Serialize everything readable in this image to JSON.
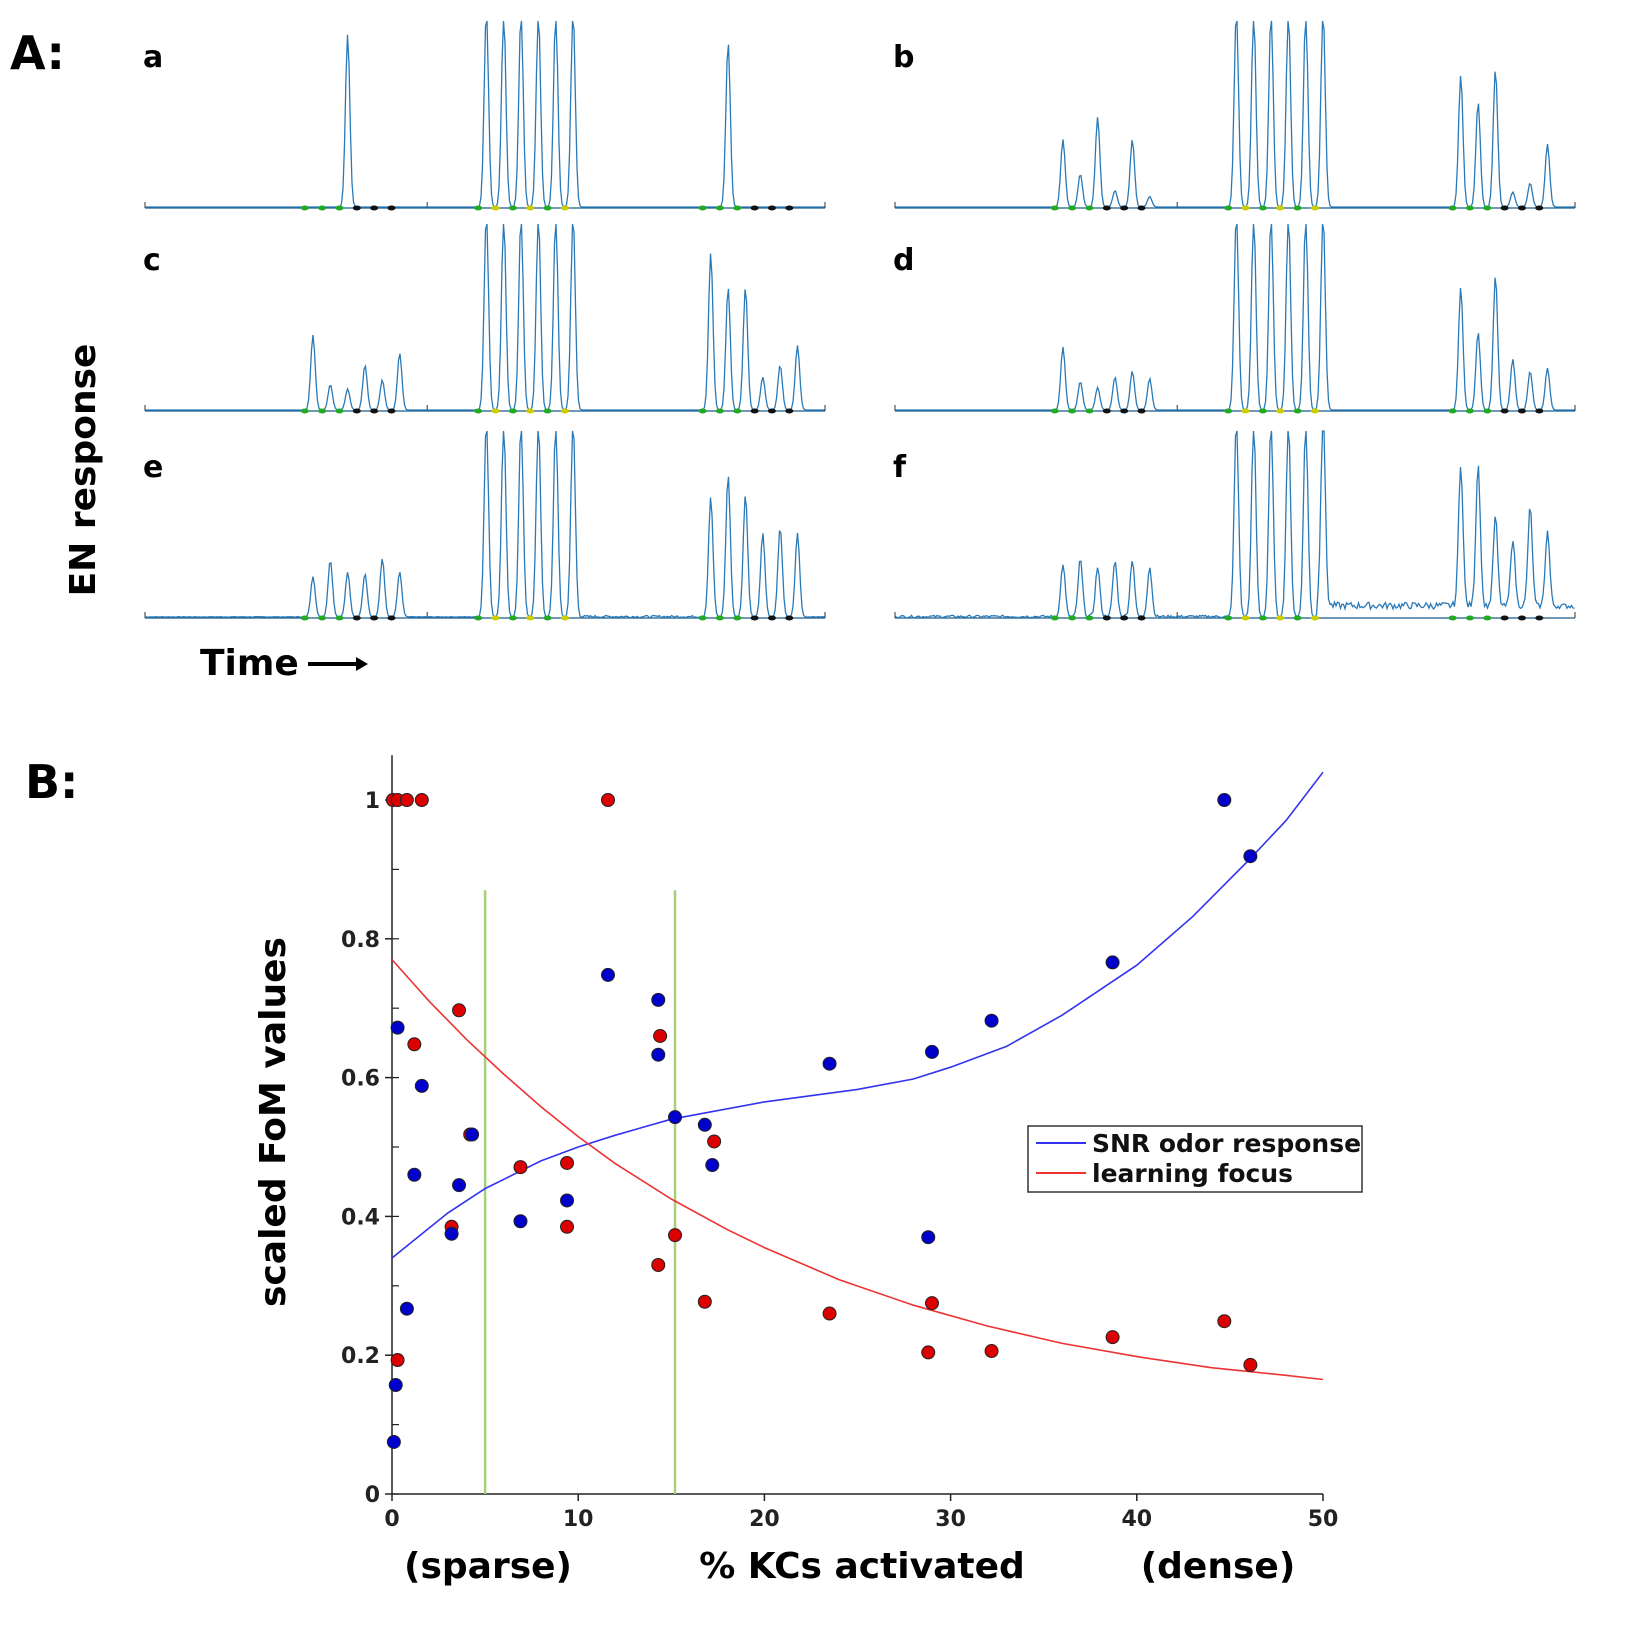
{
  "panel_a": {
    "label": "A:",
    "ylabel": "EN response",
    "xlabel": "Time",
    "subplots": [
      {
        "label": "a",
        "noise": 0,
        "groups": [
          {
            "peaks": [
              0,
              0,
              1.15,
              0,
              0,
              0
            ],
            "dots": [
              "g",
              "g",
              "g",
              "k",
              "k",
              "k"
            ]
          },
          {
            "peaks": [
              1.3,
              1.3,
              1.3,
              1.3,
              1.3,
              1.3
            ],
            "dots": [
              "g",
              "y",
              "g",
              "y",
              "g",
              "y"
            ]
          },
          {
            "peaks": [
              0,
              1.1,
              0,
              0,
              0,
              0
            ],
            "dots": [
              "g",
              "g",
              "g",
              "k",
              "k",
              "k"
            ]
          }
        ]
      },
      {
        "label": "b",
        "noise": 0,
        "groups": [
          {
            "peaks": [
              0.45,
              0.22,
              0.6,
              0.11,
              0.45,
              0.07
            ],
            "dots": [
              "g",
              "g",
              "g",
              "k",
              "k",
              "k"
            ]
          },
          {
            "peaks": [
              1.3,
              1.3,
              1.3,
              1.3,
              1.3,
              1.3
            ],
            "dots": [
              "g",
              "y",
              "g",
              "y",
              "g",
              "y"
            ]
          },
          {
            "peaks": [
              0.88,
              0.7,
              0.92,
              0.1,
              0.16,
              0.42
            ],
            "dots": [
              "g",
              "g",
              "g",
              "k",
              "k",
              "k"
            ]
          }
        ]
      },
      {
        "label": "c",
        "noise": 0,
        "groups": [
          {
            "peaks": [
              0.5,
              0.17,
              0.14,
              0.3,
              0.2,
              0.38
            ],
            "dots": [
              "g",
              "g",
              "g",
              "k",
              "k",
              "k"
            ]
          },
          {
            "peaks": [
              1.3,
              1.3,
              1.3,
              1.3,
              1.3,
              1.3
            ],
            "dots": [
              "g",
              "y",
              "g",
              "y",
              "g",
              "y"
            ]
          },
          {
            "peaks": [
              1.05,
              0.82,
              0.82,
              0.22,
              0.3,
              0.43
            ],
            "dots": [
              "g",
              "g",
              "g",
              "k",
              "k",
              "k"
            ]
          }
        ]
      },
      {
        "label": "d",
        "noise": 0,
        "groups": [
          {
            "peaks": [
              0.42,
              0.19,
              0.15,
              0.22,
              0.26,
              0.21
            ],
            "dots": [
              "g",
              "g",
              "g",
              "k",
              "k",
              "k"
            ]
          },
          {
            "peaks": [
              1.3,
              1.3,
              1.3,
              1.3,
              1.3,
              1.3
            ],
            "dots": [
              "g",
              "y",
              "g",
              "y",
              "g",
              "y"
            ]
          },
          {
            "peaks": [
              0.82,
              0.52,
              0.9,
              0.34,
              0.26,
              0.28
            ],
            "dots": [
              "g",
              "g",
              "g",
              "k",
              "k",
              "k"
            ]
          }
        ]
      },
      {
        "label": "e",
        "noise": 0.4,
        "groups": [
          {
            "peaks": [
              0.27,
              0.38,
              0.3,
              0.29,
              0.39,
              0.3
            ],
            "dots": [
              "g",
              "g",
              "g",
              "k",
              "k",
              "k"
            ]
          },
          {
            "peaks": [
              1.3,
              1.3,
              1.3,
              1.3,
              1.3,
              1.3
            ],
            "dots": [
              "g",
              "y",
              "g",
              "y",
              "g",
              "y"
            ]
          },
          {
            "peaks": [
              0.8,
              0.95,
              0.82,
              0.56,
              0.6,
              0.56
            ],
            "dots": [
              "g",
              "g",
              "g",
              "k",
              "k",
              "k"
            ]
          }
        ]
      },
      {
        "label": "f",
        "noise": 1,
        "groups": [
          {
            "peaks": [
              0.35,
              0.38,
              0.33,
              0.37,
              0.38,
              0.33
            ],
            "dots": [
              "g",
              "g",
              "g",
              "k",
              "k",
              "k"
            ]
          },
          {
            "peaks": [
              1.3,
              1.3,
              1.3,
              1.3,
              1.3,
              1.3
            ],
            "dots": [
              "g",
              "y",
              "g",
              "y",
              "g",
              "y"
            ]
          },
          {
            "peaks": [
              0.95,
              0.95,
              0.6,
              0.45,
              0.66,
              0.5
            ],
            "dots": [
              "g",
              "g",
              "g",
              "k",
              "k",
              "k"
            ]
          }
        ]
      }
    ]
  },
  "chart_data": {
    "type": "scatter",
    "label": "B:",
    "xlabel": "% KCs activated",
    "xlabel_left": "(sparse)",
    "xlabel_right": "(dense)",
    "ylabel": "scaled FoM values",
    "xlim": [
      0,
      50
    ],
    "ylim": [
      0,
      1.05
    ],
    "xticks": [
      0,
      10,
      20,
      30,
      40,
      50
    ],
    "yticks": [
      0,
      0.2,
      0.4,
      0.6,
      0.8,
      1
    ],
    "ytick_labels": [
      "0",
      "0.2",
      "0.4",
      "0.6",
      "0.8",
      "1"
    ],
    "vlines": [
      5,
      15.2
    ],
    "vline_color": "#a6cf7a",
    "legend": {
      "placement": "right-middle",
      "entries": [
        "SNR odor response",
        "learning focus"
      ]
    },
    "series": [
      {
        "name": "SNR odor response",
        "color": "#0000cc",
        "points": [
          [
            0.1,
            0.075
          ],
          [
            0.2,
            0.157
          ],
          [
            0.3,
            0.672
          ],
          [
            0.8,
            0.267
          ],
          [
            1.2,
            0.46
          ],
          [
            1.6,
            0.588
          ],
          [
            3.2,
            0.375
          ],
          [
            3.6,
            0.445
          ],
          [
            4.3,
            0.518
          ],
          [
            6.9,
            0.393
          ],
          [
            9.4,
            0.423
          ],
          [
            11.6,
            0.748
          ],
          [
            14.3,
            0.712
          ],
          [
            14.3,
            0.633
          ],
          [
            15.2,
            0.543
          ],
          [
            16.8,
            0.532
          ],
          [
            17.2,
            0.474
          ],
          [
            23.5,
            0.62
          ],
          [
            28.8,
            0.37
          ],
          [
            29,
            0.637
          ],
          [
            32.2,
            0.682
          ],
          [
            38.7,
            0.766
          ],
          [
            44.7,
            1.0
          ],
          [
            46.1,
            0.919
          ]
        ],
        "fit": [
          [
            0,
            0.34
          ],
          [
            3,
            0.405
          ],
          [
            5,
            0.44
          ],
          [
            8,
            0.48
          ],
          [
            10,
            0.5
          ],
          [
            12,
            0.517
          ],
          [
            15,
            0.54
          ],
          [
            20,
            0.565
          ],
          [
            25,
            0.583
          ],
          [
            28,
            0.598
          ],
          [
            30,
            0.615
          ],
          [
            33,
            0.645
          ],
          [
            36,
            0.69
          ],
          [
            40,
            0.762
          ],
          [
            43,
            0.832
          ],
          [
            46,
            0.913
          ],
          [
            48,
            0.97
          ],
          [
            50,
            1.04
          ]
        ]
      },
      {
        "name": "learning focus",
        "color": "#dd0000",
        "points": [
          [
            0.05,
            1.0
          ],
          [
            0.3,
            1.0
          ],
          [
            0.8,
            1.0
          ],
          [
            1.6,
            1.0
          ],
          [
            0.3,
            0.193
          ],
          [
            1.2,
            0.648
          ],
          [
            3.2,
            0.385
          ],
          [
            3.6,
            0.697
          ],
          [
            4.2,
            0.518
          ],
          [
            6.9,
            0.471
          ],
          [
            9.4,
            0.477
          ],
          [
            9.4,
            0.385
          ],
          [
            11.6,
            1.0
          ],
          [
            14.3,
            0.33
          ],
          [
            14.4,
            0.66
          ],
          [
            15.2,
            0.373
          ],
          [
            16.8,
            0.277
          ],
          [
            17.3,
            0.508
          ],
          [
            23.5,
            0.26
          ],
          [
            28.8,
            0.204
          ],
          [
            29,
            0.275
          ],
          [
            32.2,
            0.206
          ],
          [
            38.7,
            0.226
          ],
          [
            44.7,
            0.249
          ],
          [
            46.1,
            0.186
          ]
        ],
        "fit": [
          [
            0,
            0.77
          ],
          [
            2,
            0.71
          ],
          [
            4,
            0.655
          ],
          [
            6,
            0.605
          ],
          [
            8,
            0.558
          ],
          [
            10,
            0.515
          ],
          [
            12,
            0.476
          ],
          [
            15,
            0.425
          ],
          [
            18,
            0.381
          ],
          [
            20,
            0.355
          ],
          [
            24,
            0.309
          ],
          [
            28,
            0.272
          ],
          [
            32,
            0.242
          ],
          [
            36,
            0.217
          ],
          [
            40,
            0.198
          ],
          [
            44,
            0.182
          ],
          [
            48,
            0.171
          ],
          [
            50,
            0.165
          ]
        ]
      }
    ]
  }
}
